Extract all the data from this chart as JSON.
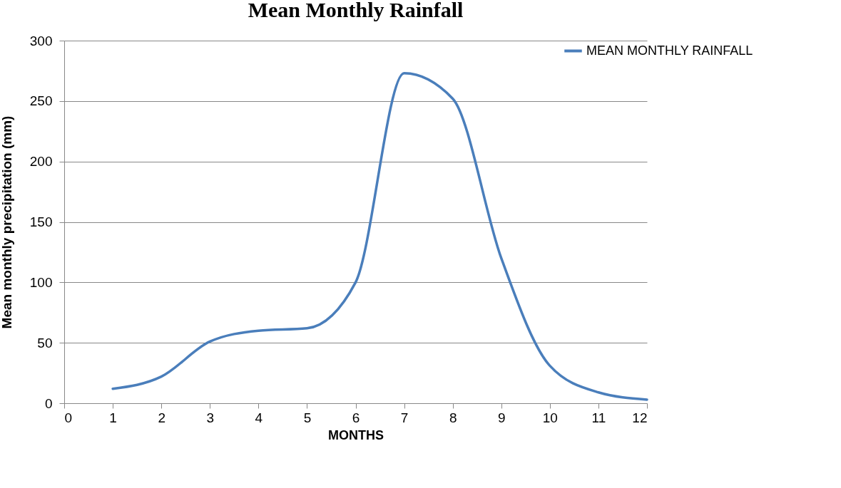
{
  "chart_data": {
    "type": "line",
    "title": "Mean Monthly Rainfall",
    "xlabel": "MONTHS",
    "ylabel": "Mean monthly precipitation (mm)",
    "x": [
      1,
      2,
      3,
      4,
      5,
      6,
      7,
      8,
      9,
      10,
      11,
      12
    ],
    "series": [
      {
        "name": "MEAN MONTHLY RAINFALL",
        "color": "#4a7ebb",
        "values": [
          12,
          22,
          51,
          60,
          62,
          100,
          273,
          252,
          120,
          31,
          9,
          3
        ]
      }
    ],
    "xlim": [
      0,
      12
    ],
    "xticks": [
      0,
      1,
      2,
      3,
      4,
      5,
      6,
      7,
      8,
      9,
      10,
      11,
      12
    ],
    "ylim": [
      0,
      300
    ],
    "yticks": [
      0,
      50,
      100,
      150,
      200,
      250,
      300
    ],
    "grid": "y",
    "legend": "right",
    "marker": "none",
    "line_style": "solid"
  }
}
